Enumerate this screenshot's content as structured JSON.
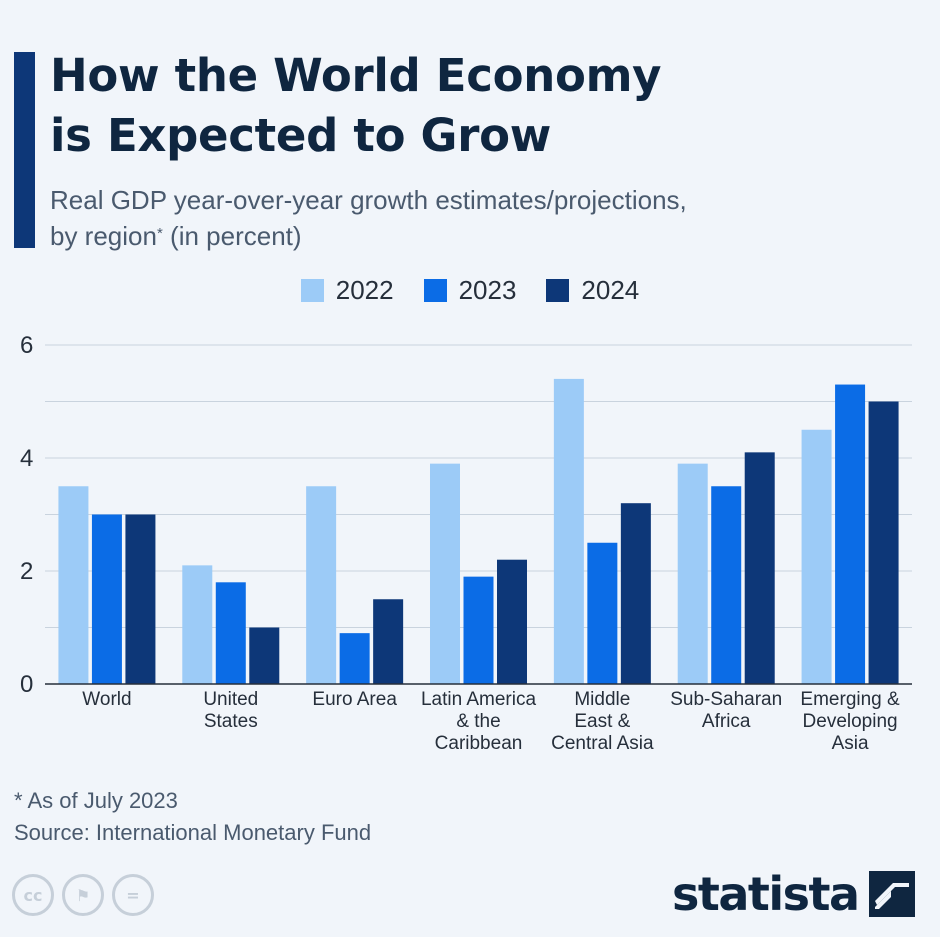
{
  "header": {
    "title_line1": "How the World Economy",
    "title_line2": "is Expected to Grow",
    "subtitle_line1": "Real GDP year-over-year growth estimates/projections,",
    "subtitle_line2_pre": "by region",
    "subtitle_asterisk": "*",
    "subtitle_line2_post": " (in percent)"
  },
  "colors": {
    "accent": "#0d3778",
    "s2022": "#9ccbf7",
    "s2023": "#0b6ce6",
    "s2024": "#0d3778"
  },
  "legend": [
    {
      "label": "2022",
      "color": "#9ccbf7"
    },
    {
      "label": "2023",
      "color": "#0b6ce6"
    },
    {
      "label": "2024",
      "color": "#0d3778"
    }
  ],
  "chart_data": {
    "type": "bar",
    "title": "How the World Economy is Expected to Grow",
    "ylabel": "",
    "xlabel": "",
    "ylim": [
      0,
      6
    ],
    "yticks": [
      "0",
      "2",
      "4",
      "6"
    ],
    "grid": true,
    "categories": [
      [
        "World"
      ],
      [
        "United",
        "States"
      ],
      [
        "Euro Area"
      ],
      [
        "Latin America",
        "& the",
        "Caribbean"
      ],
      [
        "Middle",
        "East &",
        "Central Asia"
      ],
      [
        "Sub-Saharan",
        "Africa"
      ],
      [
        "Emerging &",
        "Developing",
        "Asia"
      ]
    ],
    "series": [
      {
        "name": "2022",
        "color": "#9ccbf7",
        "values": [
          3.5,
          2.1,
          3.5,
          3.9,
          5.4,
          3.9,
          4.5
        ]
      },
      {
        "name": "2023",
        "color": "#0b6ce6",
        "values": [
          3.0,
          1.8,
          0.9,
          1.9,
          2.5,
          3.5,
          5.3
        ]
      },
      {
        "name": "2024",
        "color": "#0d3778",
        "values": [
          3.0,
          1.0,
          1.5,
          2.2,
          3.2,
          4.1,
          5.0
        ]
      }
    ]
  },
  "footer": {
    "footnote": "* As of July 2023",
    "source": "Source: International Monetary Fund",
    "brand": "statista",
    "cc_icons": [
      {
        "name": "cc-icon",
        "glyph": "cc"
      },
      {
        "name": "attribution-icon",
        "glyph": "⚑"
      },
      {
        "name": "no-derivatives-icon",
        "glyph": "="
      }
    ]
  }
}
